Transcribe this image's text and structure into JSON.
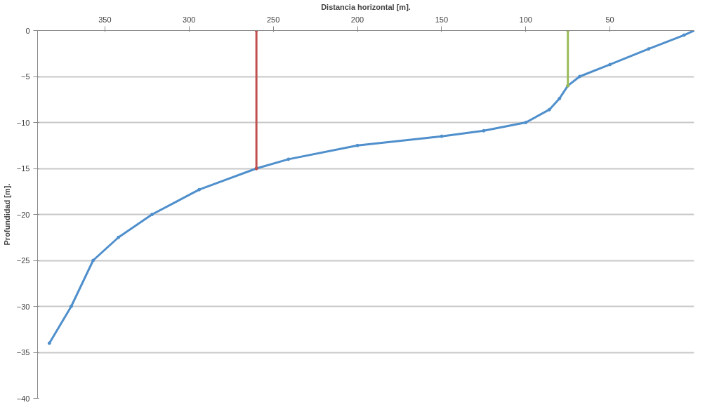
{
  "chart_data": {
    "type": "line",
    "xlabel": "Distancia horizontal [m].",
    "ylabel": "Profundidad [m].",
    "xlim": [
      390,
      0
    ],
    "xticks": [
      350,
      300,
      250,
      200,
      150,
      100,
      50
    ],
    "ylim": [
      -40,
      0
    ],
    "yticks": [
      0,
      -5,
      -10,
      -15,
      -20,
      -25,
      -30,
      -35,
      -40
    ],
    "grid": "y",
    "marker": "circle",
    "line_style": "solid",
    "series": [
      {
        "color": "#4f8fcc",
        "x": [
          383,
          370,
          357,
          342,
          322,
          294,
          260,
          241,
          200,
          150,
          125,
          100,
          86,
          80,
          75,
          68,
          50,
          27,
          6,
          0
        ],
        "values": [
          -34,
          -30,
          -25,
          -22.5,
          -20,
          -17.3,
          -15,
          -14,
          -12.5,
          -11.5,
          -10.9,
          -10,
          -8.6,
          -7.4,
          -6,
          -5,
          -3.7,
          -2,
          -0.5,
          0
        ]
      },
      {
        "color": "#c0504d",
        "x": [
          260,
          260
        ],
        "values": [
          0,
          -15
        ]
      },
      {
        "color": "#9bbb59",
        "x": [
          75,
          75
        ],
        "values": [
          0,
          -6
        ]
      }
    ]
  }
}
